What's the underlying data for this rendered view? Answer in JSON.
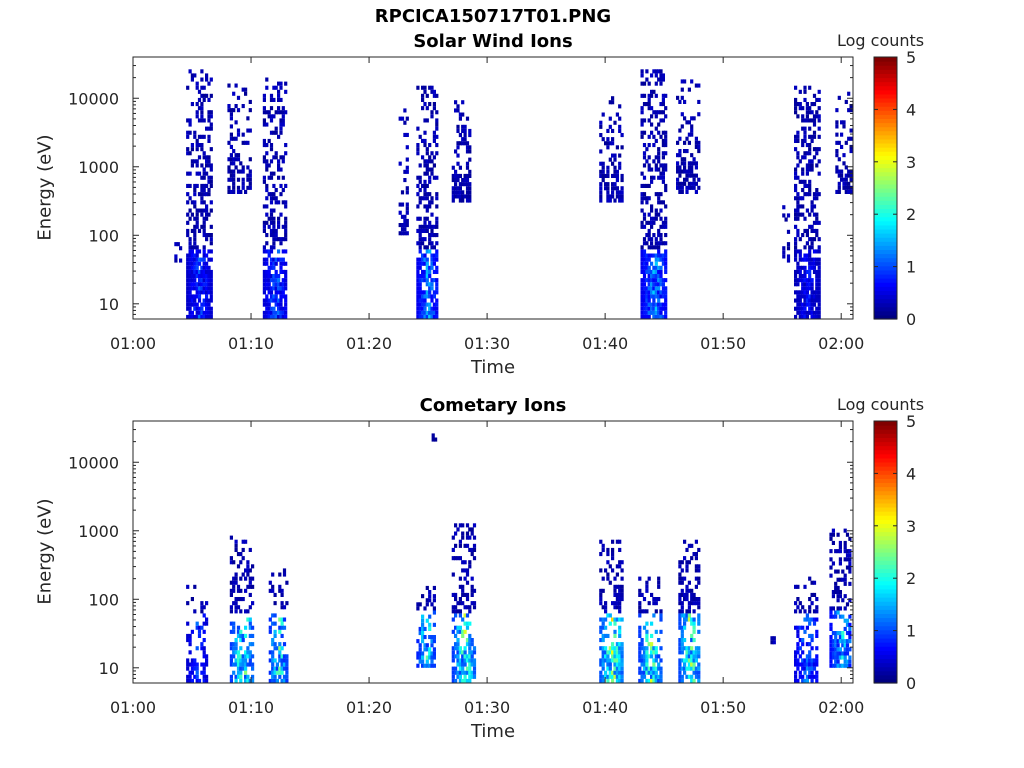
{
  "figure": {
    "title": "RPCICA150717T01.PNG"
  },
  "chart_data": [
    {
      "type": "heatmap",
      "title": "Solar Wind Ions",
      "xlabel": "Time",
      "ylabel": "Energy (eV)",
      "xlim": [
        "01:00",
        "02:01"
      ],
      "ylim": [
        6,
        40000
      ],
      "yscale": "log",
      "x_ticks": [
        "01:00",
        "01:10",
        "01:20",
        "01:30",
        "01:40",
        "01:50",
        "02:00"
      ],
      "y_ticks": [
        "10",
        "100",
        "1000",
        "10000"
      ],
      "colorbar": {
        "label": "Log counts",
        "range": [
          0,
          5
        ],
        "ticks": [
          "0",
          "1",
          "2",
          "3",
          "4",
          "5"
        ],
        "colormap": "jet"
      },
      "bursts": [
        {
          "start": "01:03.5",
          "end": "01:04.0",
          "e_min": 40,
          "e_max": 80,
          "density": 0.4,
          "core_max": 0
        },
        {
          "start": "01:04.5",
          "end": "01:06.6",
          "e_min": 6,
          "e_max": 25000,
          "density": 0.55,
          "core_max": 1.2
        },
        {
          "start": "01:08.0",
          "end": "01:10.0",
          "e_min": 400,
          "e_max": 15000,
          "density": 0.35,
          "core_max": 0
        },
        {
          "start": "01:11.0",
          "end": "01:13.0",
          "e_min": 6,
          "e_max": 20000,
          "density": 0.55,
          "core_max": 1.4
        },
        {
          "start": "01:22.5",
          "end": "01:23.3",
          "e_min": 100,
          "e_max": 8000,
          "density": 0.25,
          "core_max": 0
        },
        {
          "start": "01:24.0",
          "end": "01:25.8",
          "e_min": 6,
          "e_max": 15000,
          "density": 0.55,
          "core_max": 1.8
        },
        {
          "start": "01:27.0",
          "end": "01:28.5",
          "e_min": 300,
          "e_max": 12000,
          "density": 0.35,
          "core_max": 0
        },
        {
          "start": "01:39.5",
          "end": "01:41.5",
          "e_min": 300,
          "e_max": 12000,
          "density": 0.3,
          "core_max": 0
        },
        {
          "start": "01:43.0",
          "end": "01:45.2",
          "e_min": 6,
          "e_max": 25000,
          "density": 0.55,
          "core_max": 1.8
        },
        {
          "start": "01:46.0",
          "end": "01:48.0",
          "e_min": 400,
          "e_max": 18000,
          "density": 0.35,
          "core_max": 0
        },
        {
          "start": "01:55.0",
          "end": "01:55.6",
          "e_min": 40,
          "e_max": 500,
          "density": 0.3,
          "core_max": 0
        },
        {
          "start": "01:56.0",
          "end": "01:58.2",
          "e_min": 6,
          "e_max": 15000,
          "density": 0.55,
          "core_max": 0.9
        },
        {
          "start": "01:59.5",
          "end": "02:01.0",
          "e_min": 400,
          "e_max": 12000,
          "density": 0.35,
          "core_max": 0
        }
      ]
    },
    {
      "type": "heatmap",
      "title": "Cometary Ions",
      "xlabel": "Time",
      "ylabel": "Energy (eV)",
      "xlim": [
        "01:00",
        "02:01"
      ],
      "ylim": [
        6,
        40000
      ],
      "yscale": "log",
      "x_ticks": [
        "01:00",
        "01:10",
        "01:20",
        "01:30",
        "01:40",
        "01:50",
        "02:00"
      ],
      "y_ticks": [
        "10",
        "100",
        "1000",
        "10000"
      ],
      "colorbar": {
        "label": "Log counts",
        "range": [
          0,
          5
        ],
        "ticks": [
          "0",
          "1",
          "2",
          "3",
          "4",
          "5"
        ],
        "colormap": "jet"
      },
      "bursts": [
        {
          "start": "01:04.5",
          "end": "01:06.2",
          "e_min": 6,
          "e_max": 150,
          "density": 0.4,
          "core_max": 1.3
        },
        {
          "start": "01:08.2",
          "end": "01:10.2",
          "e_min": 6,
          "e_max": 800,
          "density": 0.5,
          "core_max": 3.0
        },
        {
          "start": "01:11.5",
          "end": "01:13.0",
          "e_min": 6,
          "e_max": 250,
          "density": 0.45,
          "core_max": 2.8
        },
        {
          "start": "01:24.0",
          "end": "01:25.5",
          "e_min": 10,
          "e_max": 150,
          "density": 0.45,
          "core_max": 2.6
        },
        {
          "start": "01:27.0",
          "end": "01:29.0",
          "e_min": 6,
          "e_max": 1200,
          "density": 0.5,
          "core_max": 3.0
        },
        {
          "start": "01:39.5",
          "end": "01:41.5",
          "e_min": 6,
          "e_max": 700,
          "density": 0.5,
          "core_max": 3.4
        },
        {
          "start": "01:42.8",
          "end": "01:44.8",
          "e_min": 6,
          "e_max": 200,
          "density": 0.5,
          "core_max": 3.0
        },
        {
          "start": "01:46.2",
          "end": "01:48.0",
          "e_min": 6,
          "e_max": 700,
          "density": 0.5,
          "core_max": 3.2
        },
        {
          "start": "01:54.0",
          "end": "01:54.3",
          "e_min": 22,
          "e_max": 30,
          "density": 0.8,
          "core_max": 0
        },
        {
          "start": "01:56.0",
          "end": "01:58.0",
          "e_min": 6,
          "e_max": 200,
          "density": 0.45,
          "core_max": 1.6
        },
        {
          "start": "01:59.0",
          "end": "02:01.0",
          "e_min": 10,
          "e_max": 1000,
          "density": 0.5,
          "core_max": 2.2
        },
        {
          "start": "01:25.3",
          "end": "01:25.5",
          "e_min": 20000,
          "e_max": 23000,
          "density": 1,
          "core_max": 0
        }
      ]
    }
  ]
}
